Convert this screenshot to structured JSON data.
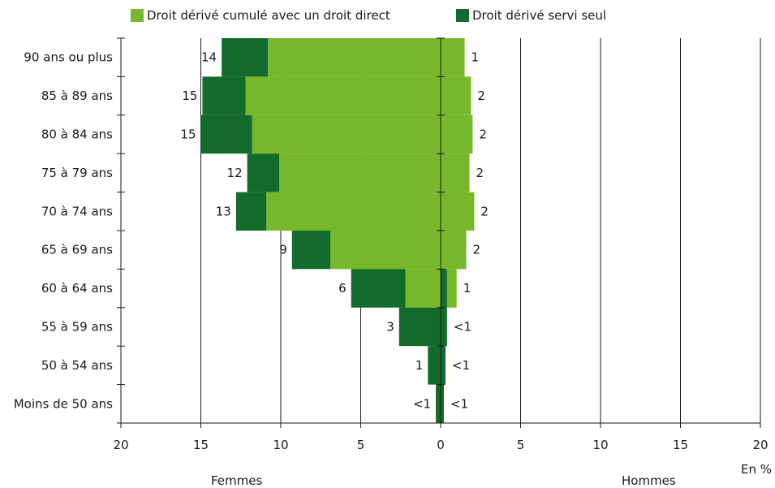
{
  "chart_data": {
    "type": "bar",
    "orientation": "horizontal-pyramid",
    "categories": [
      "90 ans ou plus",
      "85 à 89 ans",
      "80 à 84 ans",
      "75 à 79 ans",
      "70 à 74 ans",
      "65 à 69 ans",
      "60 à 64 ans",
      "55 à 59 ans",
      "50 à 54 ans",
      "Moins de 50 ans"
    ],
    "series": [
      {
        "name": "Droit dérivé cumulé avec un droit direct",
        "color": "#77b82a",
        "femmes": [
          10.8,
          12.2,
          11.8,
          10.1,
          10.9,
          6.9,
          2.2,
          0,
          0,
          0
        ],
        "hommes": [
          1.5,
          1.9,
          2.0,
          1.8,
          2.1,
          1.6,
          0.6,
          0,
          0,
          0
        ]
      },
      {
        "name": "Droit dérivé servi seul",
        "color": "#136b2b",
        "femmes": [
          2.9,
          2.7,
          3.2,
          2.0,
          1.9,
          2.4,
          3.4,
          2.6,
          0.8,
          0.3
        ],
        "hommes": [
          0,
          0,
          0,
          0,
          0,
          0,
          0.4,
          0.4,
          0.3,
          0.2
        ]
      }
    ],
    "labels_femmes": [
      "14",
      "15",
      "15",
      "12",
      "13",
      "9",
      "6",
      "3",
      "1",
      "<1"
    ],
    "labels_hommes": [
      "1",
      "2",
      "2",
      "2",
      "2",
      "2",
      "1",
      "<1",
      "<1",
      "<1"
    ],
    "x_ticks": [
      "20",
      "15",
      "10",
      "5",
      "0",
      "5",
      "10",
      "15",
      "20"
    ],
    "xlim": [
      -20,
      20
    ],
    "unit_label": "En %",
    "left_label": "Femmes",
    "right_label": "Hommes",
    "grid": "vertical",
    "legend_position": "top"
  }
}
